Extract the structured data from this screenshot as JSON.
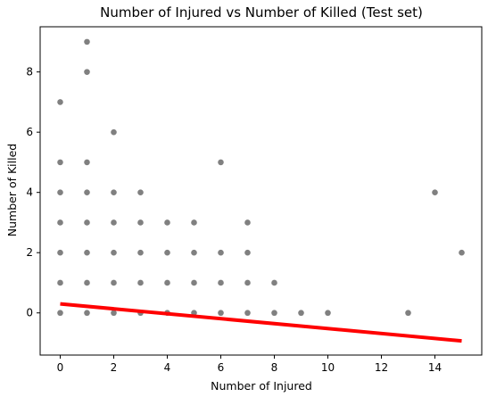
{
  "chart_data": {
    "type": "scatter",
    "title": "Number of Injured vs Number of Killed (Test set)",
    "xlabel": "Number of Injured",
    "ylabel": "Number of Killed",
    "xlim": [
      -0.75,
      15.75
    ],
    "ylim": [
      -1.4,
      9.5
    ],
    "xticks": [
      0,
      2,
      4,
      6,
      8,
      10,
      12,
      14
    ],
    "yticks": [
      0,
      2,
      4,
      6,
      8
    ],
    "xtick_labels": [
      "0",
      "2",
      "4",
      "6",
      "8",
      "10",
      "12",
      "14"
    ],
    "ytick_labels": [
      "0",
      "2",
      "4",
      "6",
      "8"
    ],
    "grid": false,
    "point_color": "#808080",
    "line_color": "#ff0000",
    "series": [
      {
        "type": "scatter",
        "points": [
          [
            0,
            0
          ],
          [
            0,
            1
          ],
          [
            0,
            2
          ],
          [
            0,
            3
          ],
          [
            0,
            4
          ],
          [
            0,
            5
          ],
          [
            0,
            7
          ],
          [
            1,
            0
          ],
          [
            1,
            1
          ],
          [
            1,
            2
          ],
          [
            1,
            3
          ],
          [
            1,
            4
          ],
          [
            1,
            5
          ],
          [
            1,
            8
          ],
          [
            1,
            9
          ],
          [
            2,
            0
          ],
          [
            2,
            1
          ],
          [
            2,
            2
          ],
          [
            2,
            3
          ],
          [
            2,
            4
          ],
          [
            2,
            6
          ],
          [
            3,
            0
          ],
          [
            3,
            1
          ],
          [
            3,
            2
          ],
          [
            3,
            3
          ],
          [
            3,
            4
          ],
          [
            4,
            0
          ],
          [
            4,
            1
          ],
          [
            4,
            2
          ],
          [
            4,
            3
          ],
          [
            5,
            0
          ],
          [
            5,
            1
          ],
          [
            5,
            2
          ],
          [
            5,
            3
          ],
          [
            6,
            0
          ],
          [
            6,
            1
          ],
          [
            6,
            2
          ],
          [
            6,
            5
          ],
          [
            7,
            0
          ],
          [
            7,
            1
          ],
          [
            7,
            2
          ],
          [
            7,
            3
          ],
          [
            8,
            0
          ],
          [
            8,
            1
          ],
          [
            9,
            0
          ],
          [
            10,
            0
          ],
          [
            13,
            0
          ],
          [
            14,
            4
          ],
          [
            15,
            2
          ]
        ]
      },
      {
        "type": "line",
        "x": [
          0,
          15
        ],
        "y": [
          0.3,
          -0.93
        ]
      }
    ]
  }
}
